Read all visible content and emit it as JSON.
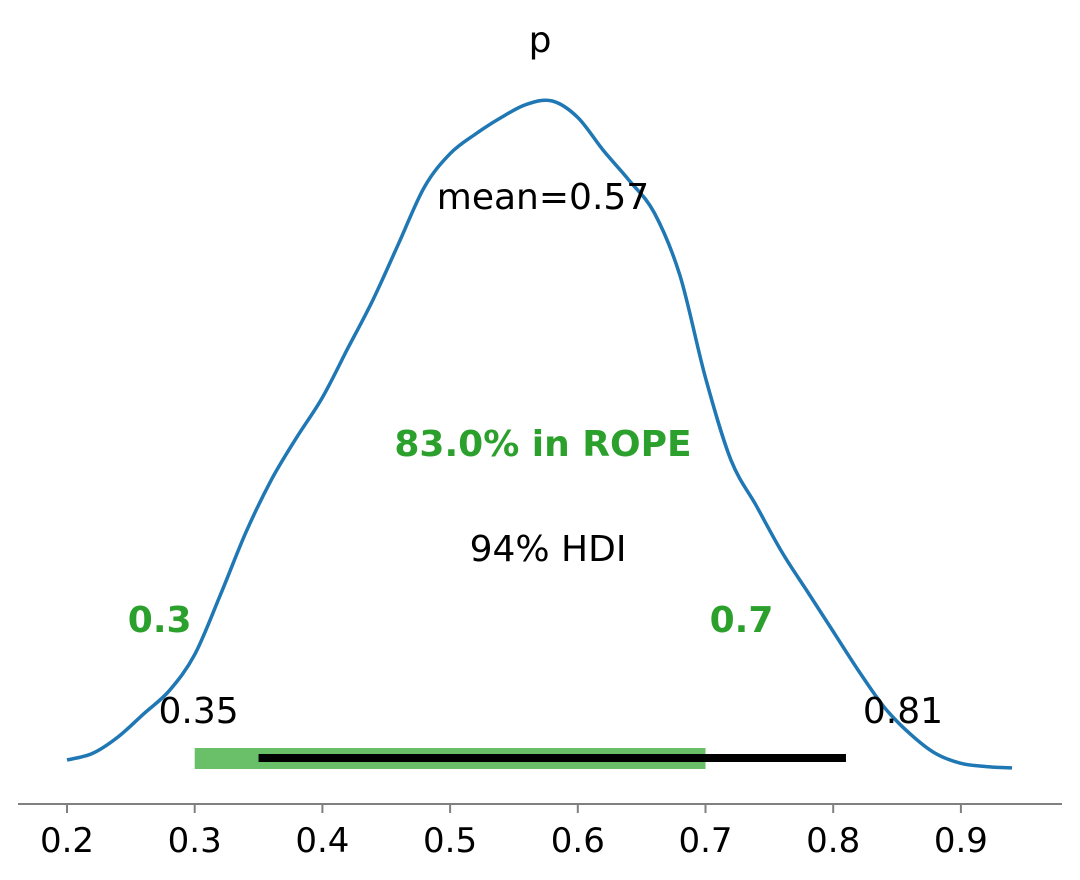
{
  "chart_data": {
    "type": "area",
    "title": "p",
    "xlabel": "",
    "ylabel": "",
    "xlim": [
      0.185,
      0.975
    ],
    "x_ticks": [
      "0.2",
      "0.3",
      "0.4",
      "0.5",
      "0.6",
      "0.7",
      "0.8",
      "0.9"
    ],
    "x_tick_values": [
      0.2,
      0.3,
      0.4,
      0.5,
      0.6,
      0.7,
      0.8,
      0.9
    ],
    "grid": false,
    "density": {
      "x": [
        0.2,
        0.22,
        0.24,
        0.26,
        0.28,
        0.3,
        0.32,
        0.34,
        0.36,
        0.38,
        0.4,
        0.42,
        0.44,
        0.46,
        0.48,
        0.5,
        0.52,
        0.54,
        0.56,
        0.58,
        0.6,
        0.62,
        0.64,
        0.66,
        0.68,
        0.7,
        0.72,
        0.74,
        0.76,
        0.78,
        0.8,
        0.82,
        0.84,
        0.86,
        0.88,
        0.9,
        0.92,
        0.94
      ],
      "y": [
        0.0,
        0.01,
        0.035,
        0.07,
        0.105,
        0.16,
        0.25,
        0.345,
        0.425,
        0.49,
        0.55,
        0.625,
        0.7,
        0.785,
        0.87,
        0.92,
        0.95,
        0.975,
        0.995,
        1.0,
        0.975,
        0.925,
        0.88,
        0.83,
        0.735,
        0.58,
        0.455,
        0.385,
        0.315,
        0.255,
        0.195,
        0.135,
        0.08,
        0.04,
        0.01,
        -0.005,
        -0.01,
        -0.012
      ]
    },
    "point_estimate": {
      "label": "mean=0.57",
      "value": 0.57
    },
    "hdi": {
      "label": "94% HDI",
      "low": 0.35,
      "high": 0.81,
      "low_label": "0.35",
      "high_label": "0.81"
    },
    "rope": {
      "low": 0.3,
      "high": 0.7,
      "low_label": "0.3",
      "high_label": "0.7",
      "label": "83.0% in ROPE"
    },
    "colors": {
      "density": "#1f77b4",
      "rope": "#2ca02c",
      "rope_bar": "#6abf69",
      "hdi": "#000000",
      "axis": "#808080"
    }
  }
}
